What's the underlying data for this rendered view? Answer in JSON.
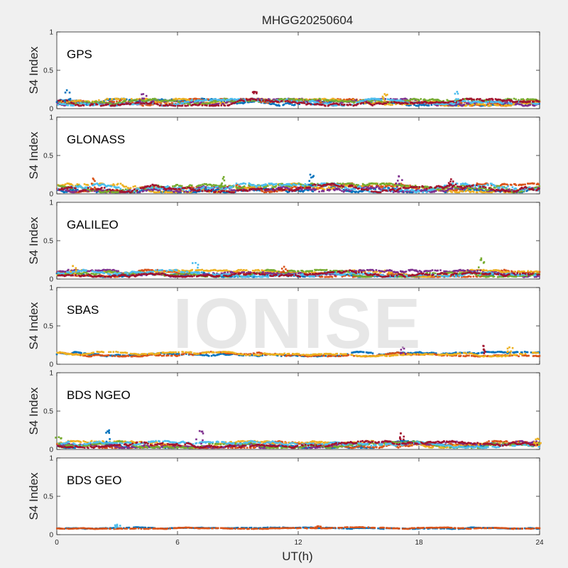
{
  "title": "MHGG20250604",
  "watermark": "IONISE",
  "colors": [
    "#0072bd",
    "#d95319",
    "#edb120",
    "#7e2f8e",
    "#77ac30",
    "#4dbeee",
    "#a2142f"
  ],
  "chart_data": {
    "type": "scatter",
    "title": "MHGG20250604",
    "xlabel": "UT(h)",
    "ylabel": "S4 Index",
    "xlim": [
      0,
      24
    ],
    "xticks": [
      0,
      6,
      12,
      18,
      24
    ],
    "ylim": [
      0,
      1
    ],
    "yticks": [
      0,
      0.5,
      1
    ],
    "ytick_labels": [
      "0",
      "0.5",
      "1"
    ],
    "grid": false,
    "panels": [
      {
        "name": "GPS",
        "baseline": 0.08,
        "spread": 0.06,
        "n_series": 7,
        "spikes": [
          [
            0.5,
            0.24
          ],
          [
            4.3,
            0.19
          ],
          [
            9.8,
            0.22
          ],
          [
            16.3,
            0.19
          ],
          [
            19.9,
            0.22
          ]
        ]
      },
      {
        "name": "GLONASS",
        "baseline": 0.07,
        "spread": 0.08,
        "n_series": 7,
        "spikes": [
          [
            1.8,
            0.2
          ],
          [
            8.3,
            0.22
          ],
          [
            12.6,
            0.25
          ],
          [
            17.0,
            0.23
          ],
          [
            19.6,
            0.19
          ]
        ]
      },
      {
        "name": "GALILEO",
        "baseline": 0.07,
        "spread": 0.06,
        "n_series": 7,
        "spikes": [
          [
            0.8,
            0.17
          ],
          [
            6.9,
            0.21
          ],
          [
            11.3,
            0.16
          ],
          [
            21.1,
            0.27
          ]
        ]
      },
      {
        "name": "SBAS",
        "baseline": 0.13,
        "spread": 0.04,
        "n_series": 3,
        "spikes": [
          [
            17.2,
            0.22
          ],
          [
            21.2,
            0.24
          ],
          [
            22.5,
            0.22
          ]
        ]
      },
      {
        "name": "BDS NGEO",
        "baseline": 0.06,
        "spread": 0.06,
        "n_series": 7,
        "spikes": [
          [
            0.1,
            0.16
          ],
          [
            2.6,
            0.25
          ],
          [
            7.1,
            0.24
          ],
          [
            17.1,
            0.21
          ],
          [
            23.9,
            0.14
          ]
        ]
      },
      {
        "name": "BDS GEO",
        "baseline": 0.085,
        "spread": 0.015,
        "n_series": 2,
        "spikes": [
          [
            3.0,
            0.13
          ],
          [
            13.0,
            0.11
          ]
        ]
      }
    ]
  }
}
